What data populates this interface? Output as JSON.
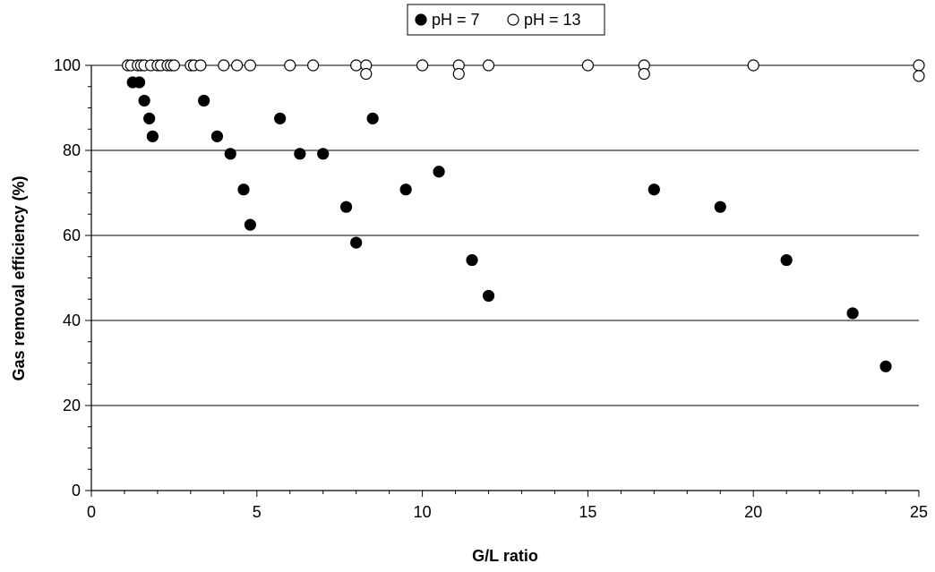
{
  "chart_data": {
    "type": "scatter",
    "title": "",
    "xlabel": "G/L ratio",
    "ylabel": "Gas removal efficiency (%)",
    "xlim": [
      0,
      25
    ],
    "ylim": [
      0,
      100
    ],
    "x_ticks": [
      "0",
      "5",
      "10",
      "15",
      "20",
      "25"
    ],
    "y_ticks": [
      "0",
      "20",
      "40",
      "60",
      "80",
      "100"
    ],
    "grid": "horizontal",
    "legend_position": "top-center",
    "series": [
      {
        "name": "pH = 7",
        "marker": "filled-circle",
        "color": "#000000",
        "points": [
          [
            1.25,
            96
          ],
          [
            1.45,
            96
          ],
          [
            1.6,
            91.7
          ],
          [
            1.75,
            87.5
          ],
          [
            1.85,
            83.3
          ],
          [
            3.4,
            91.7
          ],
          [
            3.8,
            83.3
          ],
          [
            4.2,
            79.2
          ],
          [
            4.6,
            70.8
          ],
          [
            4.8,
            62.5
          ],
          [
            5.7,
            87.5
          ],
          [
            6.3,
            79.2
          ],
          [
            7.0,
            79.2
          ],
          [
            7.7,
            66.7
          ],
          [
            8.0,
            58.3
          ],
          [
            8.5,
            87.5
          ],
          [
            9.5,
            70.8
          ],
          [
            10.5,
            75
          ],
          [
            11.5,
            54.2
          ],
          [
            12.0,
            45.8
          ],
          [
            17.0,
            70.8
          ],
          [
            19.0,
            66.7
          ],
          [
            21.0,
            54.2
          ],
          [
            23.0,
            41.7
          ],
          [
            24.0,
            29.2
          ]
        ]
      },
      {
        "name": "pH = 13",
        "marker": "open-circle",
        "color": "#000000",
        "points": [
          [
            1.1,
            100
          ],
          [
            1.2,
            100
          ],
          [
            1.4,
            100
          ],
          [
            1.5,
            100
          ],
          [
            1.6,
            100
          ],
          [
            1.8,
            100
          ],
          [
            2.0,
            100
          ],
          [
            2.1,
            100
          ],
          [
            2.3,
            100
          ],
          [
            2.4,
            100
          ],
          [
            2.5,
            100
          ],
          [
            3.0,
            100
          ],
          [
            3.1,
            100
          ],
          [
            3.3,
            100
          ],
          [
            4.0,
            100
          ],
          [
            4.4,
            100
          ],
          [
            4.8,
            100
          ],
          [
            6.0,
            100
          ],
          [
            6.7,
            100
          ],
          [
            8.0,
            100
          ],
          [
            8.3,
            100
          ],
          [
            8.3,
            98
          ],
          [
            10.0,
            100
          ],
          [
            11.1,
            100
          ],
          [
            11.1,
            98
          ],
          [
            12.0,
            100
          ],
          [
            15.0,
            100
          ],
          [
            16.7,
            100
          ],
          [
            16.7,
            98
          ],
          [
            20.0,
            100
          ],
          [
            25.0,
            100
          ],
          [
            25.0,
            97.5
          ]
        ]
      }
    ]
  }
}
